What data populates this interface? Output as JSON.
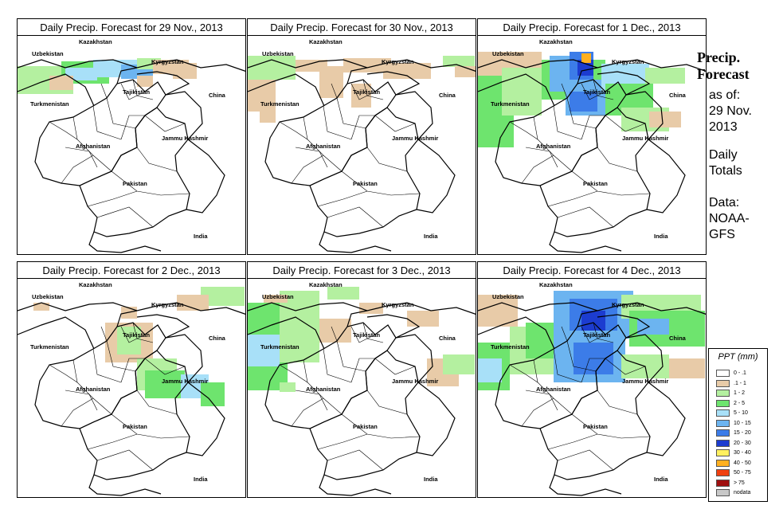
{
  "panels": [
    {
      "title": "Daily Precip. Forecast for  29 Nov., 2013",
      "pattern": 0
    },
    {
      "title": "Daily Precip. Forecast for  30 Nov., 2013",
      "pattern": 1
    },
    {
      "title": "Daily Precip. Forecast for  1 Dec., 2013",
      "pattern": 2
    },
    {
      "title": "Daily Precip. Forecast for  2 Dec., 2013",
      "pattern": 3
    },
    {
      "title": "Daily Precip. Forecast for  3 Dec., 2013",
      "pattern": 4
    },
    {
      "title": "Daily Precip. Forecast for  4 Dec., 2013",
      "pattern": 5
    }
  ],
  "map_labels": {
    "kazakhstan": "Kazakhstan",
    "uzbekistan": "Uzbekistan",
    "kyrgyzstan": "Kyrgyzstan",
    "tajikistan": "Tajikistan",
    "china": "China",
    "turkmenistan": "Turkmenistan",
    "jammu_kashmir": "Jammu Kashmir",
    "afghanistan": "Afghanistan",
    "pakistan": "Pakistan",
    "india": "India"
  },
  "side": {
    "title_line1": "Precip.",
    "title_line2": "Forecast",
    "asof_line1": "as of:",
    "asof_line2": "29 Nov.",
    "asof_line3": "2013",
    "daily_line1": "Daily",
    "daily_line2": "Totals",
    "data_line1": "Data:",
    "data_line2": "NOAA-",
    "data_line3": "GFS"
  },
  "legend": {
    "title": "PPT (mm)",
    "items": [
      {
        "label": "0 - .1",
        "color": "#ffffff"
      },
      {
        "label": ".1 - 1",
        "color": "#e8cba8"
      },
      {
        "label": "1 - 2",
        "color": "#b4f0a0"
      },
      {
        "label": "2 - 5",
        "color": "#6ee46e"
      },
      {
        "label": "5 - 10",
        "color": "#a8e0f8"
      },
      {
        "label": "10 - 15",
        "color": "#6cb4f0"
      },
      {
        "label": "15 - 20",
        "color": "#3c7ce8"
      },
      {
        "label": "20 - 30",
        "color": "#1c3cd0"
      },
      {
        "label": "30 - 40",
        "color": "#fff060"
      },
      {
        "label": "40 - 50",
        "color": "#ffb020"
      },
      {
        "label": "50 - 75",
        "color": "#f04010"
      },
      {
        "label": "> 75",
        "color": "#a01010"
      },
      {
        "label": "nodata",
        "color": "#c8c8c8"
      }
    ]
  }
}
